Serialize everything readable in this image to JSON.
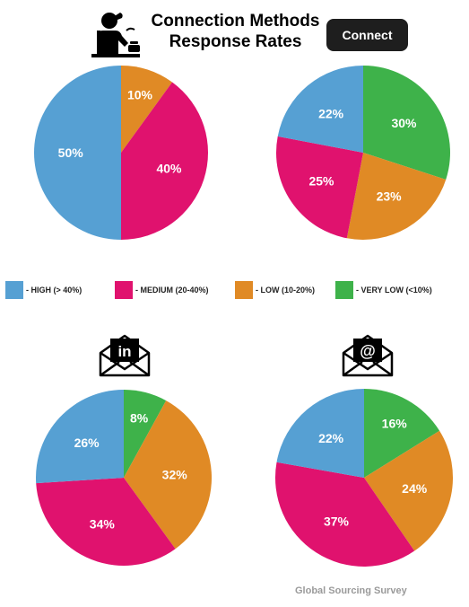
{
  "title": {
    "line1": "Connection Methods",
    "line2": "Response Rates"
  },
  "connect_button": {
    "label": "Connect"
  },
  "footer": "Global Sourcing Survey",
  "legend": [
    {
      "label": "- HIGH (> 40%)",
      "color": "#56a0d3"
    },
    {
      "label": "- MEDIUM (20-40%)",
      "color": "#e0126e"
    },
    {
      "label": "- LOW (10-20%)",
      "color": "#e08a25"
    },
    {
      "label": "- VERY LOW (<10%)",
      "color": "#3eb24a"
    }
  ],
  "icons": {
    "top_left": "person-phone-icon",
    "bottom_left": "linkedin-envelope-icon",
    "bottom_right": "email-envelope-icon"
  },
  "chart_data": [
    {
      "type": "pie",
      "slices": [
        {
          "category": "LOW",
          "value": 10,
          "label": "10%",
          "color": "#e08a25"
        },
        {
          "category": "MEDIUM",
          "value": 40,
          "label": "40%",
          "color": "#e0126e"
        },
        {
          "category": "HIGH",
          "value": 50,
          "label": "50%",
          "color": "#56a0d3"
        }
      ]
    },
    {
      "type": "pie",
      "slices": [
        {
          "category": "VERY LOW",
          "value": 30,
          "label": "30%",
          "color": "#3eb24a"
        },
        {
          "category": "LOW",
          "value": 23,
          "label": "23%",
          "color": "#e08a25"
        },
        {
          "category": "MEDIUM",
          "value": 25,
          "label": "25%",
          "color": "#e0126e"
        },
        {
          "category": "HIGH",
          "value": 22,
          "label": "22%",
          "color": "#56a0d3"
        }
      ]
    },
    {
      "type": "pie",
      "slices": [
        {
          "category": "VERY LOW",
          "value": 8,
          "label": "8%",
          "color": "#3eb24a"
        },
        {
          "category": "LOW",
          "value": 32,
          "label": "32%",
          "color": "#e08a25"
        },
        {
          "category": "MEDIUM",
          "value": 34,
          "label": "34%",
          "color": "#e0126e"
        },
        {
          "category": "HIGH",
          "value": 26,
          "label": "26%",
          "color": "#56a0d3"
        }
      ]
    },
    {
      "type": "pie",
      "slices": [
        {
          "category": "VERY LOW",
          "value": 16,
          "label": "16%",
          "color": "#3eb24a"
        },
        {
          "category": "LOW",
          "value": 24,
          "label": "24%",
          "color": "#e08a25"
        },
        {
          "category": "MEDIUM",
          "value": 37,
          "label": "37%",
          "color": "#e0126e"
        },
        {
          "category": "HIGH",
          "value": 22,
          "label": "22%",
          "color": "#56a0d3"
        }
      ]
    }
  ]
}
